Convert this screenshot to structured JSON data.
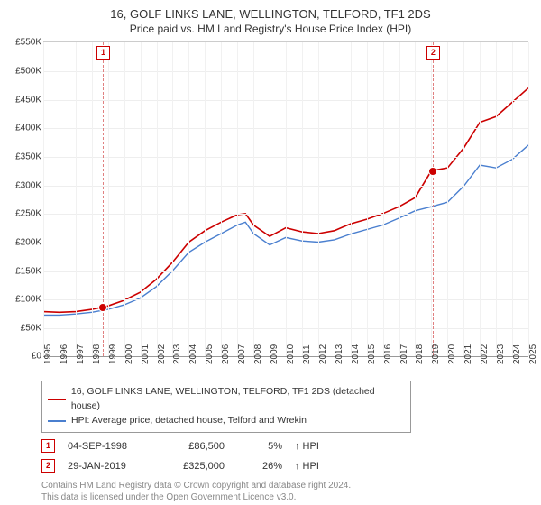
{
  "title_line1": "16, GOLF LINKS LANE, WELLINGTON, TELFORD, TF1 2DS",
  "title_line2": "Price paid vs. HM Land Registry's House Price Index (HPI)",
  "chart": {
    "type": "line",
    "background_color": "#ffffff",
    "grid_color": "#eeeeee",
    "axis_color": "#999999",
    "ylim": [
      0,
      550000
    ],
    "ytick_step": 50000,
    "yticks": [
      "£0",
      "£50K",
      "£100K",
      "£150K",
      "£200K",
      "£250K",
      "£300K",
      "£350K",
      "£400K",
      "£450K",
      "£500K",
      "£550K"
    ],
    "xlim": [
      1995,
      2025
    ],
    "xticks": [
      "1995",
      "1996",
      "1997",
      "1998",
      "1999",
      "2000",
      "2001",
      "2002",
      "2003",
      "2004",
      "2005",
      "2006",
      "2007",
      "2008",
      "2009",
      "2010",
      "2011",
      "2012",
      "2013",
      "2014",
      "2015",
      "2016",
      "2017",
      "2018",
      "2019",
      "2020",
      "2021",
      "2022",
      "2023",
      "2024",
      "2025"
    ],
    "label_fontsize": 10,
    "series": [
      {
        "name": "property",
        "color": "#cc0000",
        "line_width": 1.6,
        "data": [
          [
            1995,
            78000
          ],
          [
            1996,
            77000
          ],
          [
            1997,
            78000
          ],
          [
            1998,
            82000
          ],
          [
            1999,
            88000
          ],
          [
            2000,
            98000
          ],
          [
            2001,
            112000
          ],
          [
            2002,
            135000
          ],
          [
            2003,
            165000
          ],
          [
            2004,
            200000
          ],
          [
            2005,
            220000
          ],
          [
            2006,
            235000
          ],
          [
            2007,
            248000
          ],
          [
            2007.5,
            250000
          ],
          [
            2008,
            230000
          ],
          [
            2009,
            210000
          ],
          [
            2010,
            225000
          ],
          [
            2011,
            218000
          ],
          [
            2012,
            215000
          ],
          [
            2013,
            220000
          ],
          [
            2014,
            232000
          ],
          [
            2015,
            240000
          ],
          [
            2016,
            250000
          ],
          [
            2017,
            262000
          ],
          [
            2018,
            278000
          ],
          [
            2019,
            325000
          ],
          [
            2020,
            330000
          ],
          [
            2021,
            365000
          ],
          [
            2022,
            410000
          ],
          [
            2023,
            420000
          ],
          [
            2024,
            445000
          ],
          [
            2025,
            470000
          ]
        ]
      },
      {
        "name": "hpi",
        "color": "#4a7fcf",
        "line_width": 1.4,
        "data": [
          [
            1995,
            72000
          ],
          [
            1996,
            72000
          ],
          [
            1997,
            74000
          ],
          [
            1998,
            77000
          ],
          [
            1999,
            82000
          ],
          [
            2000,
            90000
          ],
          [
            2001,
            102000
          ],
          [
            2002,
            122000
          ],
          [
            2003,
            150000
          ],
          [
            2004,
            182000
          ],
          [
            2005,
            200000
          ],
          [
            2006,
            215000
          ],
          [
            2007,
            230000
          ],
          [
            2007.5,
            235000
          ],
          [
            2008,
            215000
          ],
          [
            2009,
            195000
          ],
          [
            2010,
            208000
          ],
          [
            2011,
            202000
          ],
          [
            2012,
            200000
          ],
          [
            2013,
            204000
          ],
          [
            2014,
            214000
          ],
          [
            2015,
            222000
          ],
          [
            2016,
            230000
          ],
          [
            2017,
            242000
          ],
          [
            2018,
            255000
          ],
          [
            2019,
            262000
          ],
          [
            2020,
            270000
          ],
          [
            2021,
            298000
          ],
          [
            2022,
            335000
          ],
          [
            2023,
            330000
          ],
          [
            2024,
            345000
          ],
          [
            2025,
            370000
          ]
        ]
      }
    ],
    "events": [
      {
        "id": "1",
        "year": 1998.68,
        "price": 86500
      },
      {
        "id": "2",
        "year": 2019.08,
        "price": 325000
      }
    ],
    "vline_color": "#e08080",
    "marker_border_color": "#cc0000"
  },
  "legend": {
    "items": [
      {
        "label": "16, GOLF LINKS LANE, WELLINGTON, TELFORD, TF1 2DS (detached house)",
        "color": "#cc0000"
      },
      {
        "label": "HPI: Average price, detached house, Telford and Wrekin",
        "color": "#4a7fcf"
      }
    ]
  },
  "transactions": [
    {
      "id": "1",
      "date": "04-SEP-1998",
      "price": "£86,500",
      "pct": "5%",
      "arrow": "↑",
      "suffix": "HPI"
    },
    {
      "id": "2",
      "date": "29-JAN-2019",
      "price": "£325,000",
      "pct": "26%",
      "arrow": "↑",
      "suffix": "HPI"
    }
  ],
  "footer_line1": "Contains HM Land Registry data © Crown copyright and database right 2024.",
  "footer_line2": "This data is licensed under the Open Government Licence v3.0."
}
